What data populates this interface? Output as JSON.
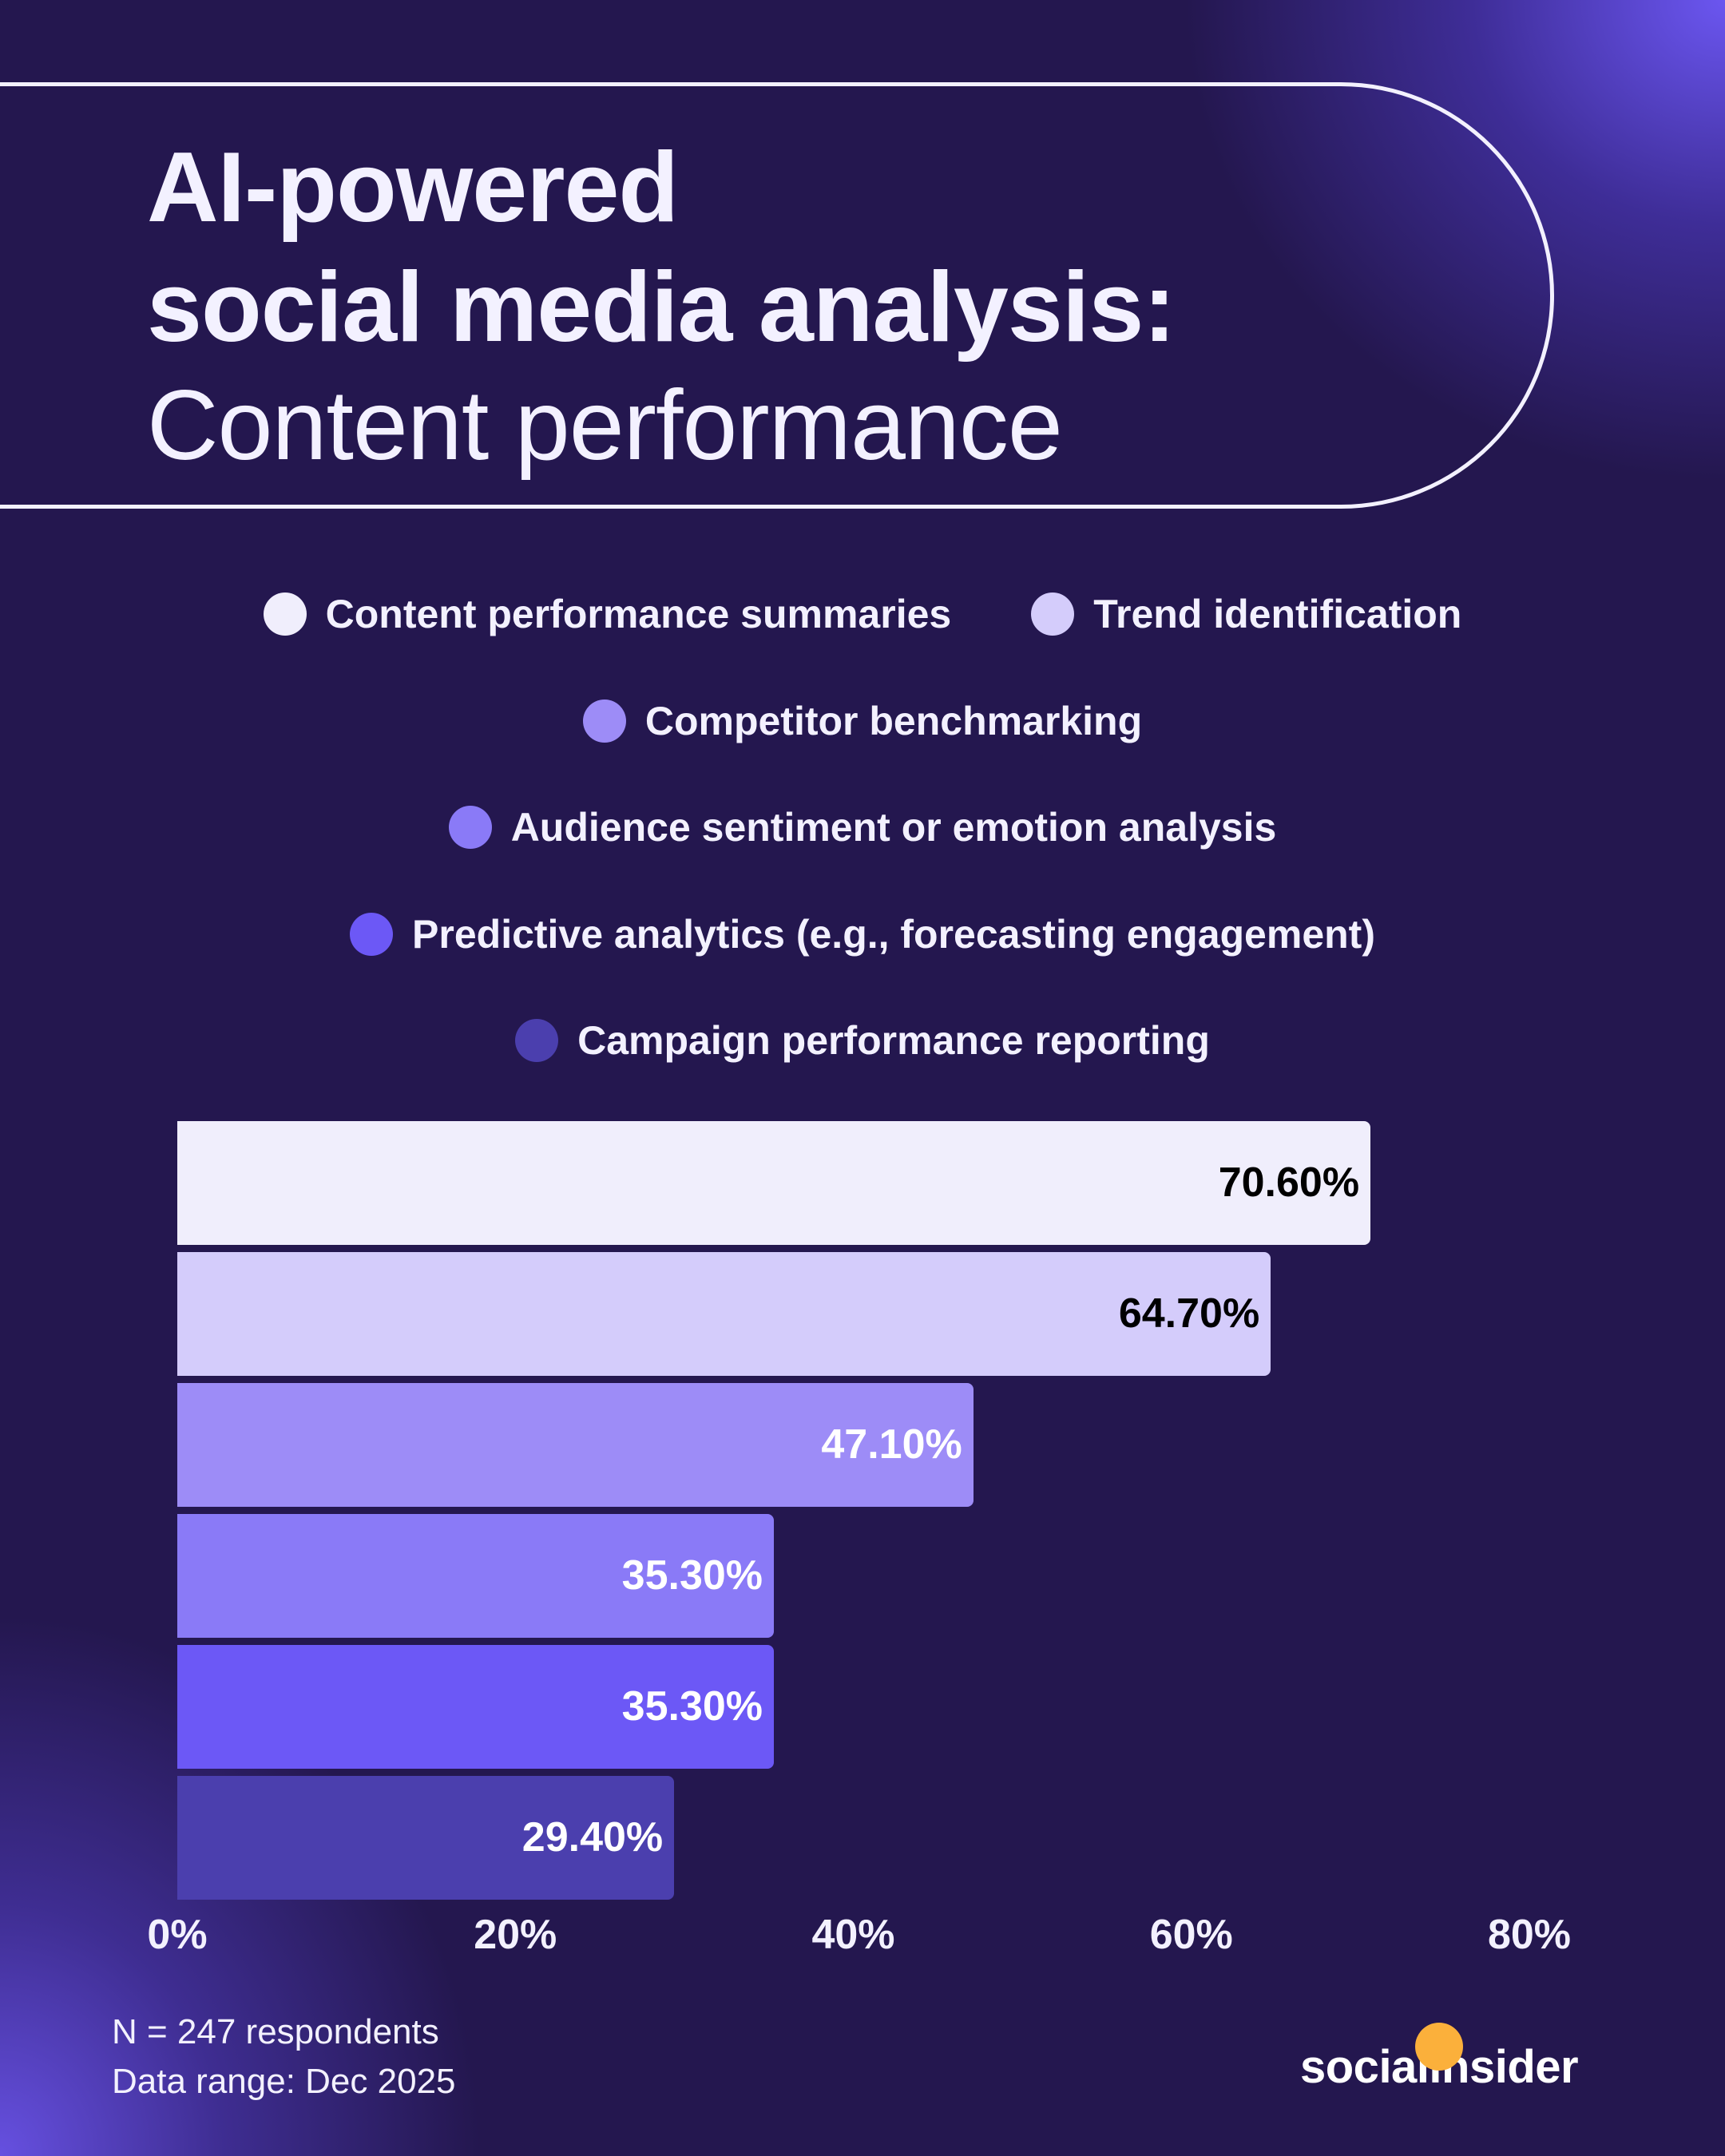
{
  "header": {
    "title_line1": "AI-powered",
    "title_line2": "social media analysis:",
    "subtitle": "Content performance"
  },
  "chart_data": {
    "type": "bar",
    "orientation": "horizontal",
    "categories": [
      "Content performance summaries",
      "Trend identification",
      "Competitor benchmarking",
      "Audience sentiment or emotion analysis",
      "Predictive analytics (e.g., forecasting engagement)",
      "Campaign performance reporting"
    ],
    "values": [
      70.6,
      64.7,
      47.1,
      35.3,
      35.3,
      29.4
    ],
    "value_labels": [
      "70.60%",
      "64.70%",
      "47.10%",
      "35.30%",
      "35.30%",
      "29.40%"
    ],
    "colors": [
      "#f0eefc",
      "#d4ccfb",
      "#9d8cf7",
      "#8a7af7",
      "#6c58f6",
      "#4b3fae"
    ],
    "label_colors": [
      "#000000",
      "#000000",
      "#ffffff",
      "#ffffff",
      "#ffffff",
      "#ffffff"
    ],
    "xlim": [
      0,
      80
    ],
    "x_ticks": [
      "0%",
      "20%",
      "40%",
      "60%",
      "80%"
    ],
    "x_tick_values": [
      0,
      20,
      40,
      60,
      80
    ],
    "legend_placement": "top",
    "grid": false
  },
  "footer": {
    "sample": "N = 247 respondents",
    "range": "Data range: Dec 2025"
  },
  "brand": {
    "logo": "socialinsider",
    "accent": "#fbb03b"
  }
}
